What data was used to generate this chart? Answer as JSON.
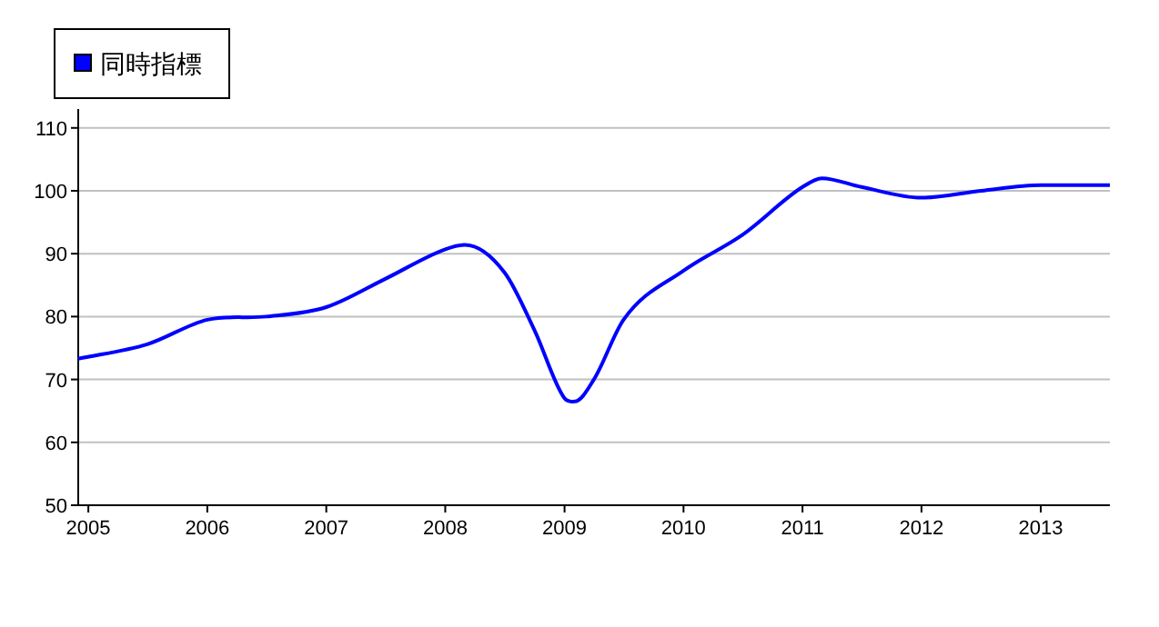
{
  "chart_data": {
    "type": "line",
    "x": [
      "2004-12",
      "2005-07",
      "2006-01",
      "2006-07",
      "2007-01",
      "2007-07",
      "2008-01",
      "2008-03",
      "2008-07",
      "2008-10",
      "2009-01",
      "2009-02",
      "2009-04",
      "2009-07",
      "2010-01",
      "2010-07",
      "2011-01",
      "2011-03",
      "2011-07",
      "2012-01",
      "2012-07",
      "2013-01",
      "2013-08"
    ],
    "series": [
      {
        "name": "同時指標",
        "color": "#0000ff",
        "values": [
          73.3,
          75.6,
          79.5,
          80,
          81.5,
          86,
          90.7,
          91.4,
          87,
          77.8,
          67,
          66.5,
          70,
          79.5,
          87.3,
          93,
          100.6,
          102,
          100.6,
          98.9,
          100,
          100.9,
          100.9
        ]
      }
    ],
    "xlim": [
      "2004-12",
      "2013-08"
    ],
    "xticks": [
      "2005",
      "2006",
      "2007",
      "2008",
      "2009",
      "2010",
      "2011",
      "2012",
      "2013"
    ],
    "ylim": [
      50,
      113
    ],
    "yticks": [
      50,
      60,
      70,
      80,
      90,
      100,
      110
    ],
    "grid": "y",
    "legend": "top left",
    "marker": "none",
    "line_style": "solid"
  }
}
